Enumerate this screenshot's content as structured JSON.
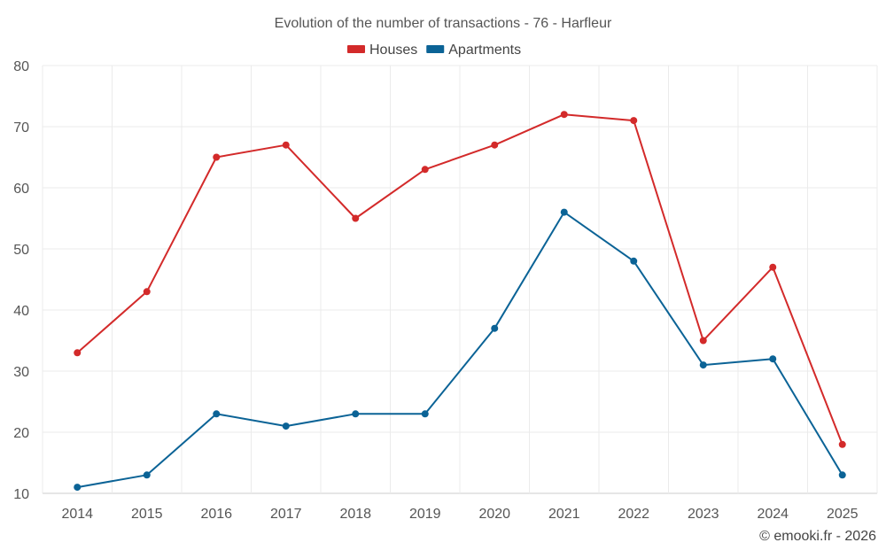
{
  "chart_data": {
    "type": "line",
    "title": "Evolution of the number of transactions - 76 - Harfleur",
    "xlabel": "",
    "ylabel": "",
    "categories": [
      "2014",
      "2015",
      "2016",
      "2017",
      "2018",
      "2019",
      "2020",
      "2021",
      "2022",
      "2023",
      "2024",
      "2025"
    ],
    "ylim": [
      10,
      80
    ],
    "yticks": [
      10,
      20,
      30,
      40,
      50,
      60,
      70,
      80
    ],
    "grid": true,
    "legend_position": "top-center",
    "series": [
      {
        "name": "Houses",
        "color": "#d32a2a",
        "values": [
          33,
          43,
          65,
          67,
          55,
          63,
          67,
          72,
          71,
          35,
          47,
          18
        ]
      },
      {
        "name": "Apartments",
        "color": "#0b6396",
        "values": [
          11,
          13,
          23,
          21,
          23,
          23,
          37,
          56,
          48,
          31,
          32,
          13
        ]
      }
    ]
  },
  "credit": "© emooki.fr - 2026"
}
